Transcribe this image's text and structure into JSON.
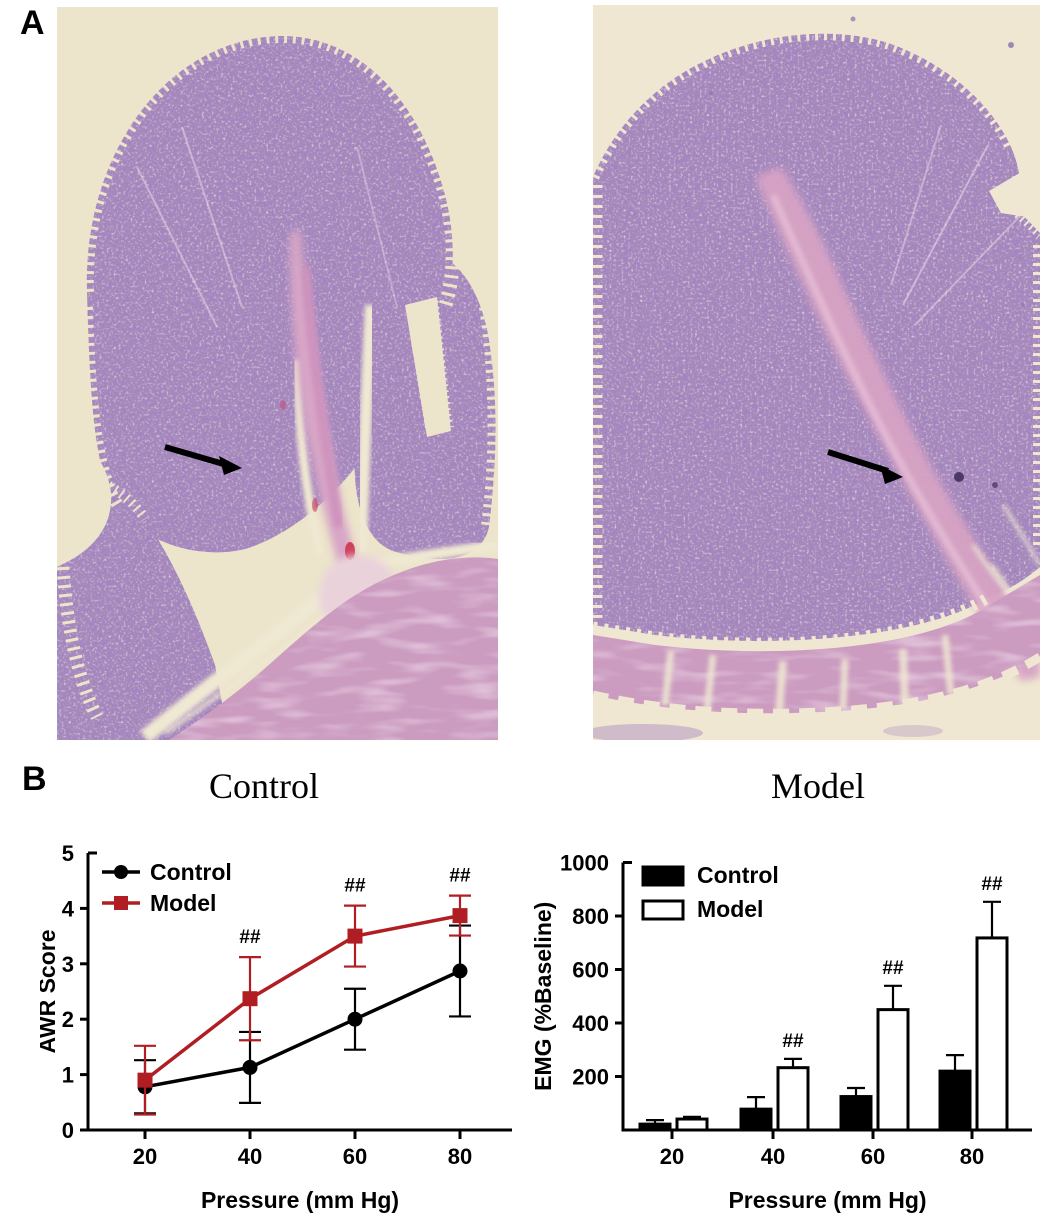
{
  "panels": {
    "a_label": "A",
    "b_label": "B",
    "left_caption": "Control",
    "right_caption": "Model"
  },
  "colors": {
    "control_black": "#000000",
    "model_red": "#B01E23",
    "histology_background": "#ece4cb",
    "tissue_purple": "#a689bb",
    "muscle_pink": "#cb9bc0"
  },
  "histology": {
    "left_arrow": "arrow pointing right into mucosa",
    "right_arrow": "arrow pointing right into mucosa"
  },
  "chart_data": [
    {
      "id": "awr",
      "type": "line",
      "x": [
        20,
        40,
        60,
        80
      ],
      "xlabel": "Pressure (mm Hg)",
      "ylabel": "AWR Score",
      "ylim": [
        0,
        5
      ],
      "yticks": [
        0,
        1,
        2,
        3,
        4,
        5
      ],
      "legend_position": "top-left",
      "grid": false,
      "series": [
        {
          "name": "Control",
          "color": "#000000",
          "marker": "circle",
          "values": [
            0.78,
            1.13,
            2.0,
            2.87
          ],
          "err": [
            0.48,
            0.64,
            0.55,
            0.82
          ]
        },
        {
          "name": "Model",
          "color": "#B01E23",
          "marker": "square",
          "values": [
            0.9,
            2.37,
            3.5,
            3.87
          ],
          "err": [
            0.62,
            0.75,
            0.55,
            0.36
          ]
        }
      ],
      "annotations": [
        {
          "x": 40,
          "text": "##"
        },
        {
          "x": 60,
          "text": "##"
        },
        {
          "x": 80,
          "text": "##"
        }
      ]
    },
    {
      "id": "emg",
      "type": "bar",
      "x": [
        20,
        40,
        60,
        80
      ],
      "xlabel": "Pressure (mm Hg)",
      "ylabel": "EMG (%Baseline)",
      "ylim": [
        0,
        1000
      ],
      "yticks": [
        200,
        400,
        600,
        800,
        1000
      ],
      "legend_position": "top-left",
      "grid": false,
      "series": [
        {
          "name": "Control",
          "fill": "#000000",
          "stroke": "#000000",
          "values": [
            22,
            78,
            125,
            220
          ],
          "err": [
            15,
            45,
            32,
            60
          ]
        },
        {
          "name": "Model",
          "fill": "#ffffff",
          "stroke": "#000000",
          "values": [
            41,
            233,
            450,
            718
          ],
          "err": [
            8,
            33,
            89,
            135
          ]
        }
      ],
      "annotations": [
        {
          "x": 40,
          "text": "##"
        },
        {
          "x": 60,
          "text": "##"
        },
        {
          "x": 80,
          "text": "##"
        }
      ]
    }
  ]
}
